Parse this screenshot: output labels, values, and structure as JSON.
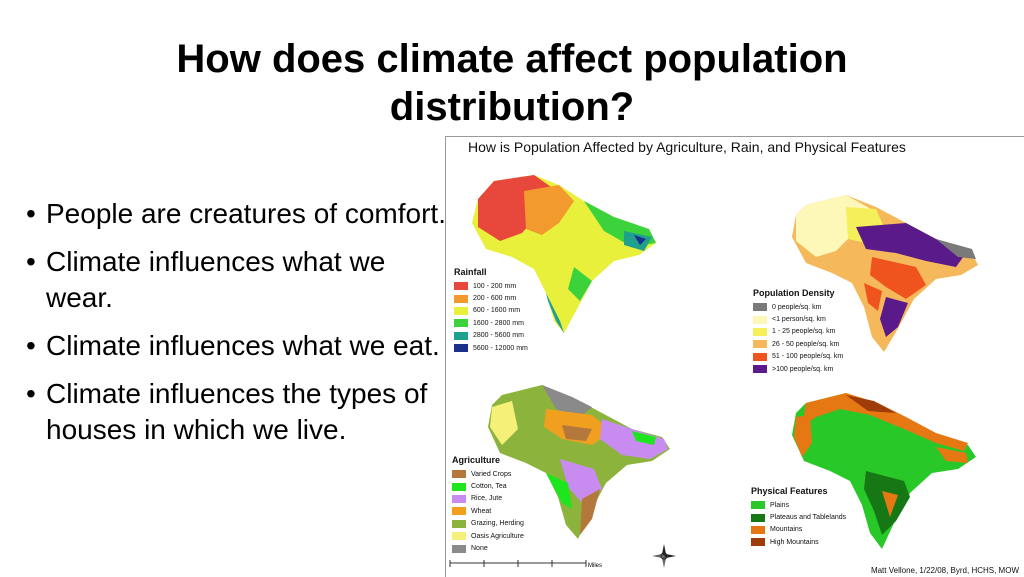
{
  "slide": {
    "title": "How does climate affect population distribution?",
    "bullets": [
      "People are creatures of comfort.",
      "Climate influences what we wear.",
      "Climate influences what we eat.",
      "Climate influences the types of houses in which we live."
    ]
  },
  "figure": {
    "title": "How is Population Affected by Agriculture, Rain, and Physical Features",
    "credit": "Matt Vellone, 1/22/08, Byrd, HCHS, MOW",
    "scale_label": "Miles",
    "rainfall": {
      "title": "Rainfall",
      "items": [
        {
          "label": "100 - 200 mm",
          "color": "#e8483c"
        },
        {
          "label": "200 - 600 mm",
          "color": "#f29a2e"
        },
        {
          "label": "600 - 1600 mm",
          "color": "#e8f03c"
        },
        {
          "label": "1600 - 2800 mm",
          "color": "#3cd23c"
        },
        {
          "label": "2800 - 5600 mm",
          "color": "#1fa08c"
        },
        {
          "label": "5600 - 12000 mm",
          "color": "#1a2f8a"
        }
      ]
    },
    "population": {
      "title": "Population Density",
      "items": [
        {
          "label": "0 people/sq. km",
          "color": "#7a7a7a"
        },
        {
          "label": "<1 person/sq. km",
          "color": "#fdf8b8"
        },
        {
          "label": "1 - 25 people/sq. km",
          "color": "#f5ef5a"
        },
        {
          "label": "26 - 50 people/sq. km",
          "color": "#f5b85a"
        },
        {
          "label": "51 - 100 people/sq. km",
          "color": "#f0541e"
        },
        {
          "label": ">100 people/sq. km",
          "color": "#5a1a8a"
        }
      ]
    },
    "agriculture": {
      "title": "Agriculture",
      "items": [
        {
          "label": "Varied Crops",
          "color": "#b4783c"
        },
        {
          "label": "Cotton, Tea",
          "color": "#1ee61e"
        },
        {
          "label": "Rice, Jute",
          "color": "#c88cf0"
        },
        {
          "label": "Wheat",
          "color": "#f0a01e"
        },
        {
          "label": "Grazing, Herding",
          "color": "#8cb43c"
        },
        {
          "label": "Oasis Agriculture",
          "color": "#f5f078"
        },
        {
          "label": "None",
          "color": "#8a8a8a"
        }
      ]
    },
    "physical": {
      "title": "Physical Features",
      "items": [
        {
          "label": "Plains",
          "color": "#28c828"
        },
        {
          "label": "Plateaus and Tablelands",
          "color": "#157815"
        },
        {
          "label": "Mountains",
          "color": "#e67814"
        },
        {
          "label": "High Mountains",
          "color": "#a03c0a"
        }
      ]
    }
  }
}
